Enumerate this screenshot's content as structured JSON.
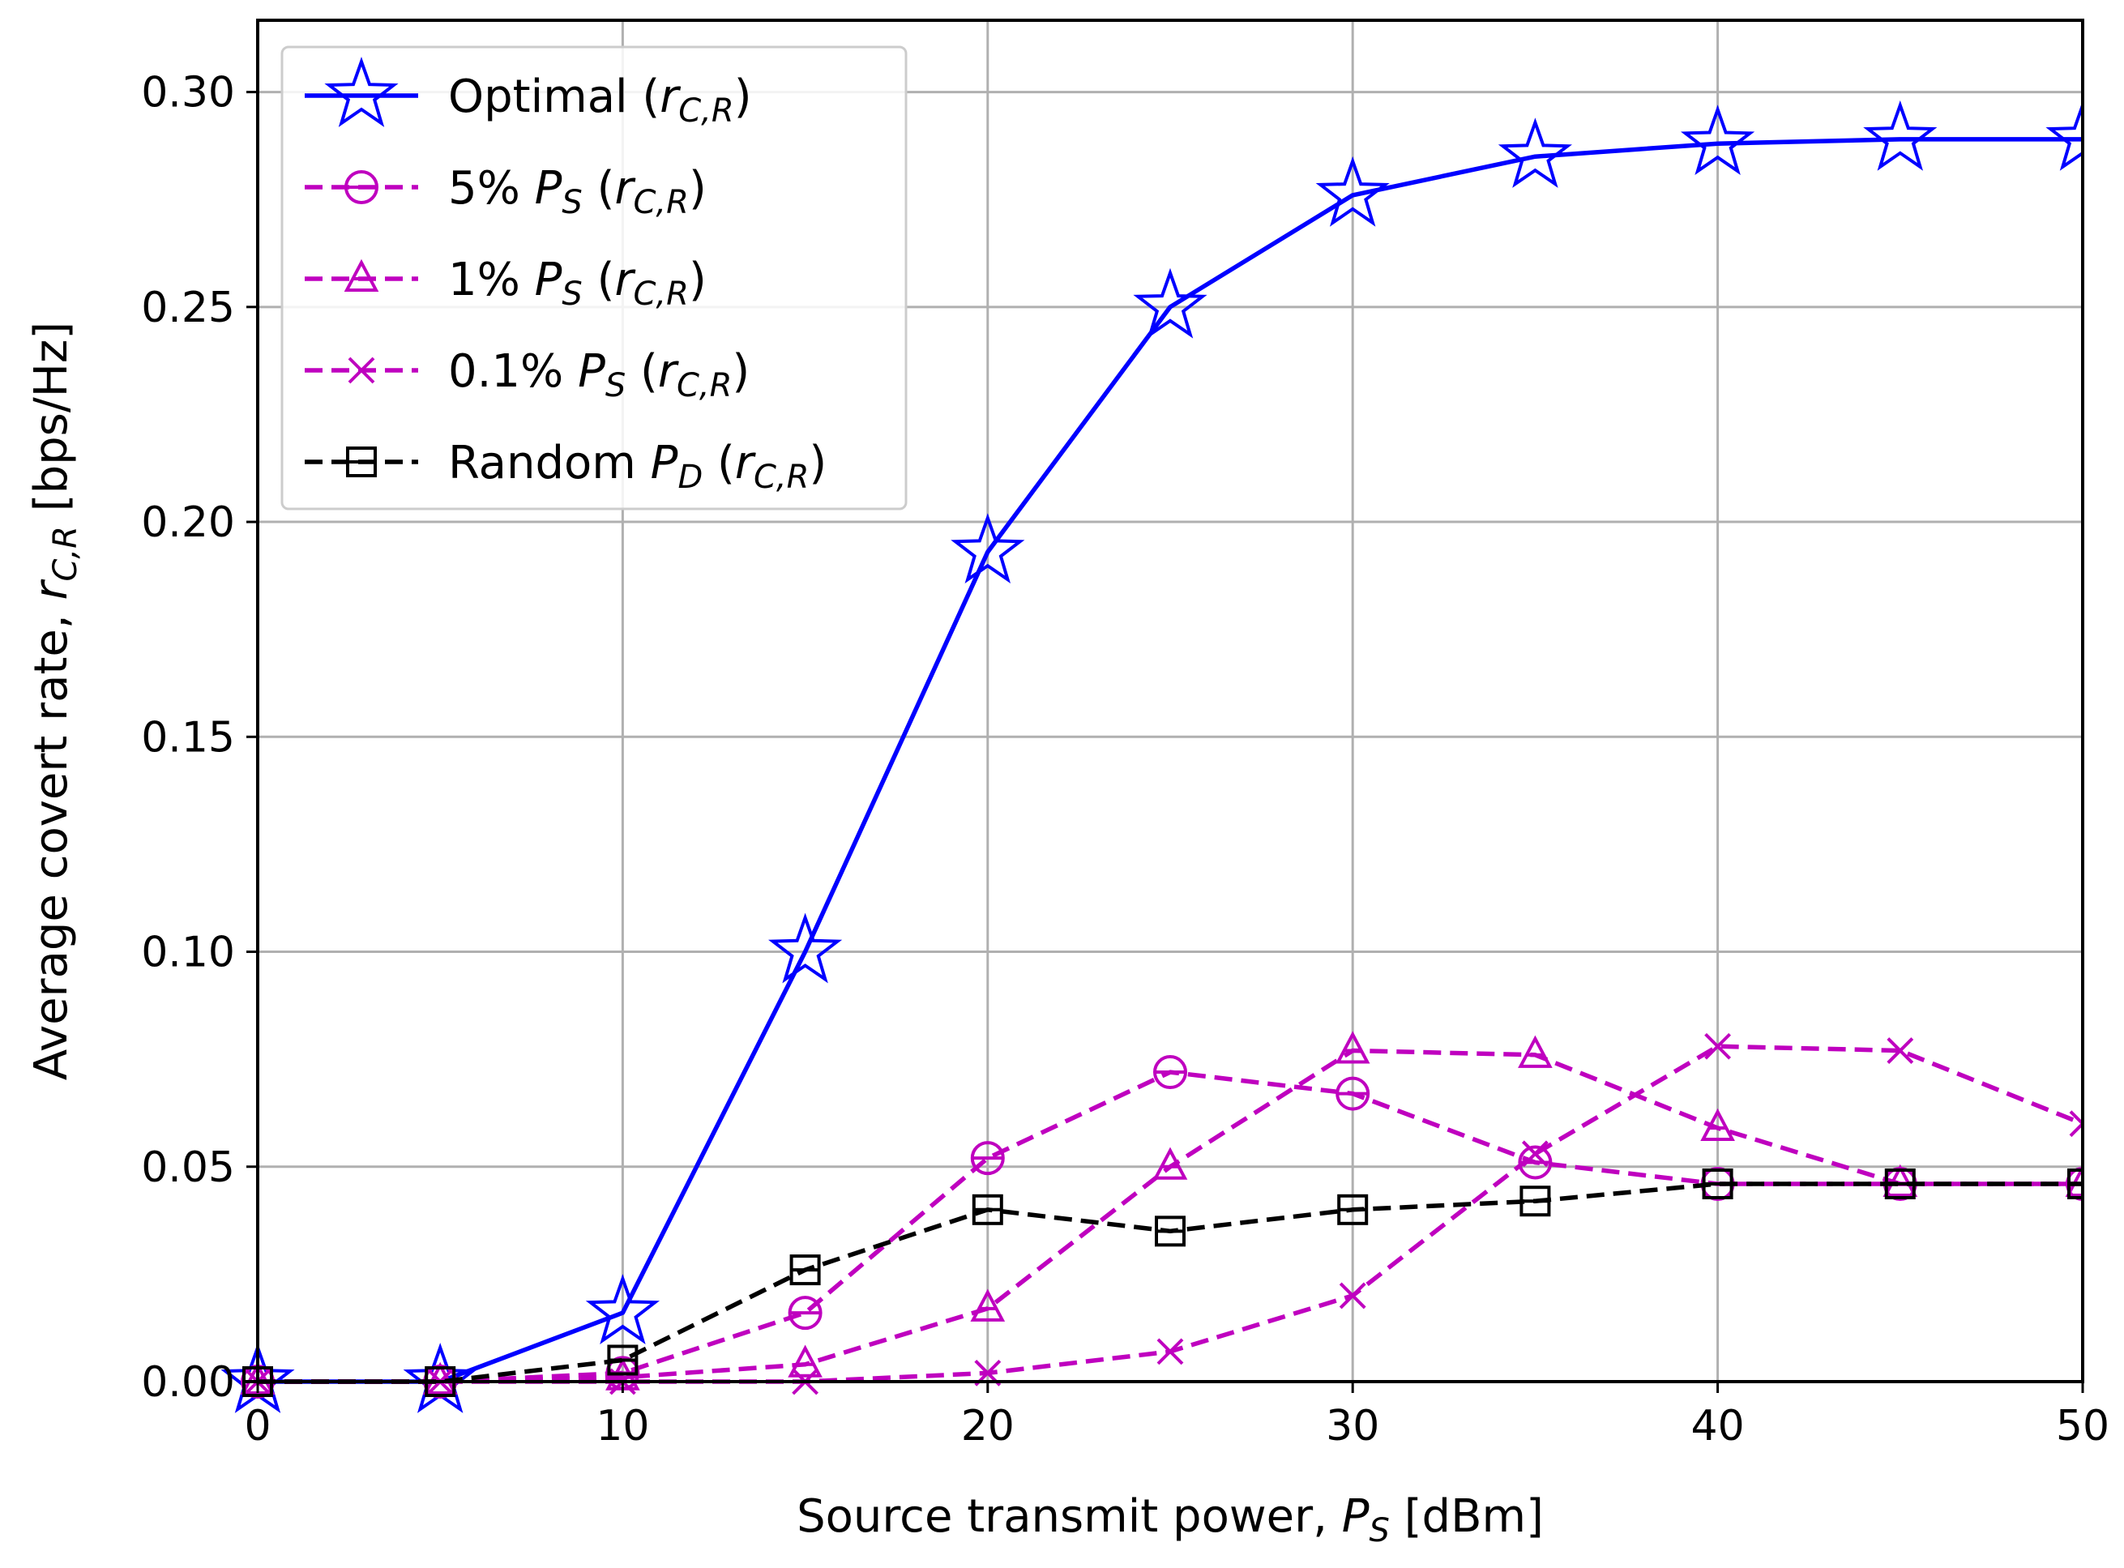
{
  "chart_data": {
    "type": "line",
    "title": "",
    "xlabel": "Source transmit power, P_S [dBm]",
    "ylabel": "Average covert rate, r_{C,R} [bps/Hz]",
    "xlim": [
      0,
      50
    ],
    "ylim": [
      0,
      0.3167
    ],
    "xticks": [
      0,
      10,
      20,
      30,
      40,
      50
    ],
    "xtick_labels": [
      "0",
      "10",
      "20",
      "30",
      "40",
      "50"
    ],
    "yticks": [
      0.0,
      0.05,
      0.1,
      0.15,
      0.2,
      0.25,
      0.3
    ],
    "ytick_labels": [
      "0.00",
      "0.05",
      "0.10",
      "0.15",
      "0.20",
      "0.25",
      "0.30"
    ],
    "grid": true,
    "legend_position": "top-left",
    "x": [
      0,
      5,
      10,
      15,
      20,
      25,
      30,
      35,
      40,
      45,
      50
    ],
    "series": [
      {
        "name": "Optimal (r_{C,R})",
        "label_main": "Optimal (",
        "label_sub": "C,R",
        "color": "#0000ff",
        "linestyle": "solid",
        "marker": "star",
        "values": [
          0.0,
          0.0,
          0.016,
          0.1,
          0.193,
          0.25,
          0.276,
          0.285,
          0.288,
          0.289,
          0.289
        ]
      },
      {
        "name": "5% P_S (r_{C,R})",
        "label_main": "5% ",
        "label_sub": "C,R",
        "color": "#bf00bf",
        "linestyle": "dashed",
        "marker": "circle",
        "values": [
          0.0,
          0.0,
          0.002,
          0.016,
          0.052,
          0.072,
          0.067,
          0.051,
          0.046,
          0.046,
          0.046
        ]
      },
      {
        "name": "1% P_S (r_{C,R})",
        "label_main": "1% ",
        "label_sub": "C,R",
        "color": "#bf00bf",
        "linestyle": "dashed",
        "marker": "triangle",
        "values": [
          0.0,
          0.0,
          0.001,
          0.004,
          0.017,
          0.05,
          0.077,
          0.076,
          0.059,
          0.046,
          0.046
        ]
      },
      {
        "name": "0.1% P_S (r_{C,R})",
        "label_main": "0.1% ",
        "label_sub": "C,R",
        "color": "#bf00bf",
        "linestyle": "dashed",
        "marker": "x",
        "values": [
          0.0,
          0.0,
          0.0,
          0.0,
          0.002,
          0.007,
          0.02,
          0.053,
          0.078,
          0.077,
          0.06
        ]
      },
      {
        "name": "Random P_D (r_{C,R})",
        "label_main": "Random ",
        "label_sub": "C,R",
        "color": "#000000",
        "linestyle": "dashed",
        "marker": "square",
        "values": [
          0.0,
          0.0,
          0.005,
          0.026,
          0.04,
          0.035,
          0.04,
          0.042,
          0.046,
          0.046,
          0.046
        ]
      }
    ]
  }
}
